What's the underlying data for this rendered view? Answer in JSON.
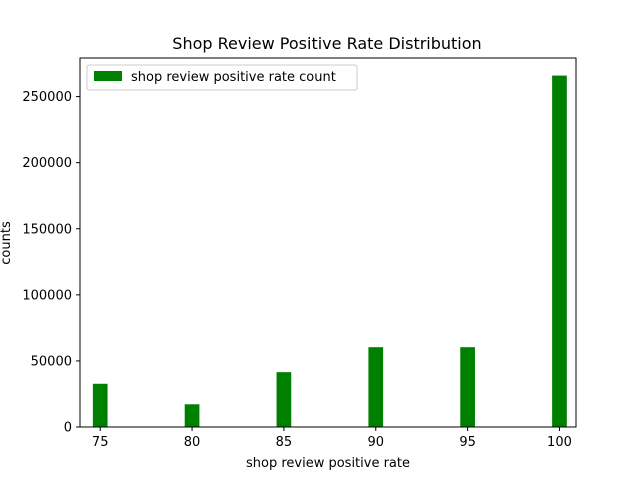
{
  "chart_data": {
    "type": "bar",
    "title": "Shop Review Positive Rate Distribution",
    "xlabel": "shop review positive rate",
    "ylabel": "counts",
    "x": [
      75,
      80,
      85,
      90,
      95,
      100
    ],
    "values": [
      32700,
      17200,
      41500,
      60400,
      60400,
      265900
    ],
    "series": [
      {
        "name": "shop review positive rate count",
        "values": [
          32700,
          17200,
          41500,
          60400,
          60400,
          265900
        ]
      }
    ],
    "xticks": [
      75,
      80,
      85,
      90,
      95,
      100
    ],
    "xtick_labels": [
      "75",
      "80",
      "85",
      "90",
      "95",
      "100"
    ],
    "yticks": [
      0,
      50000,
      100000,
      150000,
      200000,
      250000
    ],
    "ytick_labels": [
      "0",
      "50000",
      "100000",
      "150000",
      "200000",
      "250000"
    ],
    "xlim": [
      73.9,
      100.9
    ],
    "ylim": [
      0,
      279200
    ],
    "bar_width": 0.8,
    "grid": false,
    "legend_position": "top-left",
    "colors": {
      "bar": "#008000",
      "axes": "#000000",
      "background": "#ffffff"
    }
  }
}
